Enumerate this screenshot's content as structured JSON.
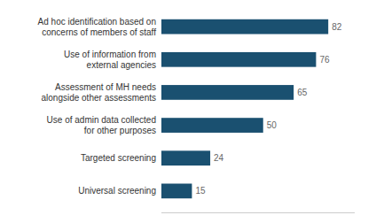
{
  "chart_data": {
    "type": "bar",
    "orientation": "horizontal",
    "categories": [
      "Universal screening",
      "Targeted screening",
      "Use of admin data collected\nfor other purposes",
      "Assessment of MH needs\nalongside other assessments",
      "Use of information from\nexternal agencies",
      "Ad hoc identification based on\nconcerns of members of staff"
    ],
    "values": [
      15,
      24,
      50,
      65,
      76,
      82
    ],
    "color": "#1a5070",
    "xlim": [
      0,
      95
    ],
    "data_labels": true,
    "tick_labels": "y"
  }
}
